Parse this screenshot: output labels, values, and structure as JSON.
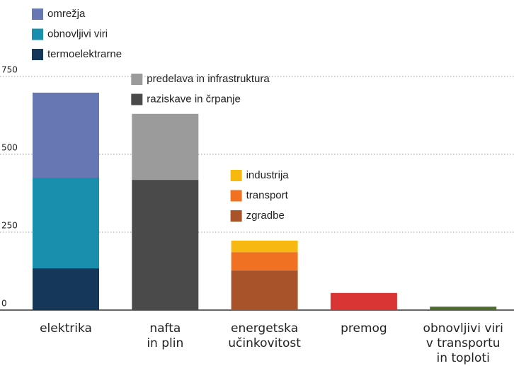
{
  "chart_data": {
    "type": "stacked_bar",
    "ylim": [
      0,
      750
    ],
    "yticks": [
      0,
      250,
      500,
      750
    ],
    "grid": true,
    "categories": [
      {
        "label": [
          "elektrika"
        ],
        "segments": [
          {
            "name": "termoelektrarne",
            "color": "#14375a",
            "value": 134
          },
          {
            "name": "obnovljivi viri",
            "color": "#1a8fad",
            "value": 291
          },
          {
            "name": "omrežja",
            "color": "#6677b3",
            "value": 273
          }
        ]
      },
      {
        "label": [
          "nafta",
          "in plin"
        ],
        "segments": [
          {
            "name": "raziskave in črpanje",
            "color": "#4a4a4a",
            "value": 418
          },
          {
            "name": "predelava in infrastruktura",
            "color": "#9b9b9b",
            "value": 212
          }
        ]
      },
      {
        "label": [
          "energetska",
          "učinkovitost"
        ],
        "segments": [
          {
            "name": "zgradbe",
            "color": "#a8532a",
            "value": 127
          },
          {
            "name": "transport",
            "color": "#f07122",
            "value": 59
          },
          {
            "name": "industrija",
            "color": "#f7b90f",
            "value": 37
          }
        ]
      },
      {
        "label": [
          "premog"
        ],
        "segments": [
          {
            "color": "#d93535",
            "value": 55
          }
        ]
      },
      {
        "label": [
          "obnovljivi viri",
          "v transportu",
          "in toploti"
        ],
        "segments": [
          {
            "color": "#4d6b2e",
            "value": 11
          }
        ]
      }
    ]
  }
}
